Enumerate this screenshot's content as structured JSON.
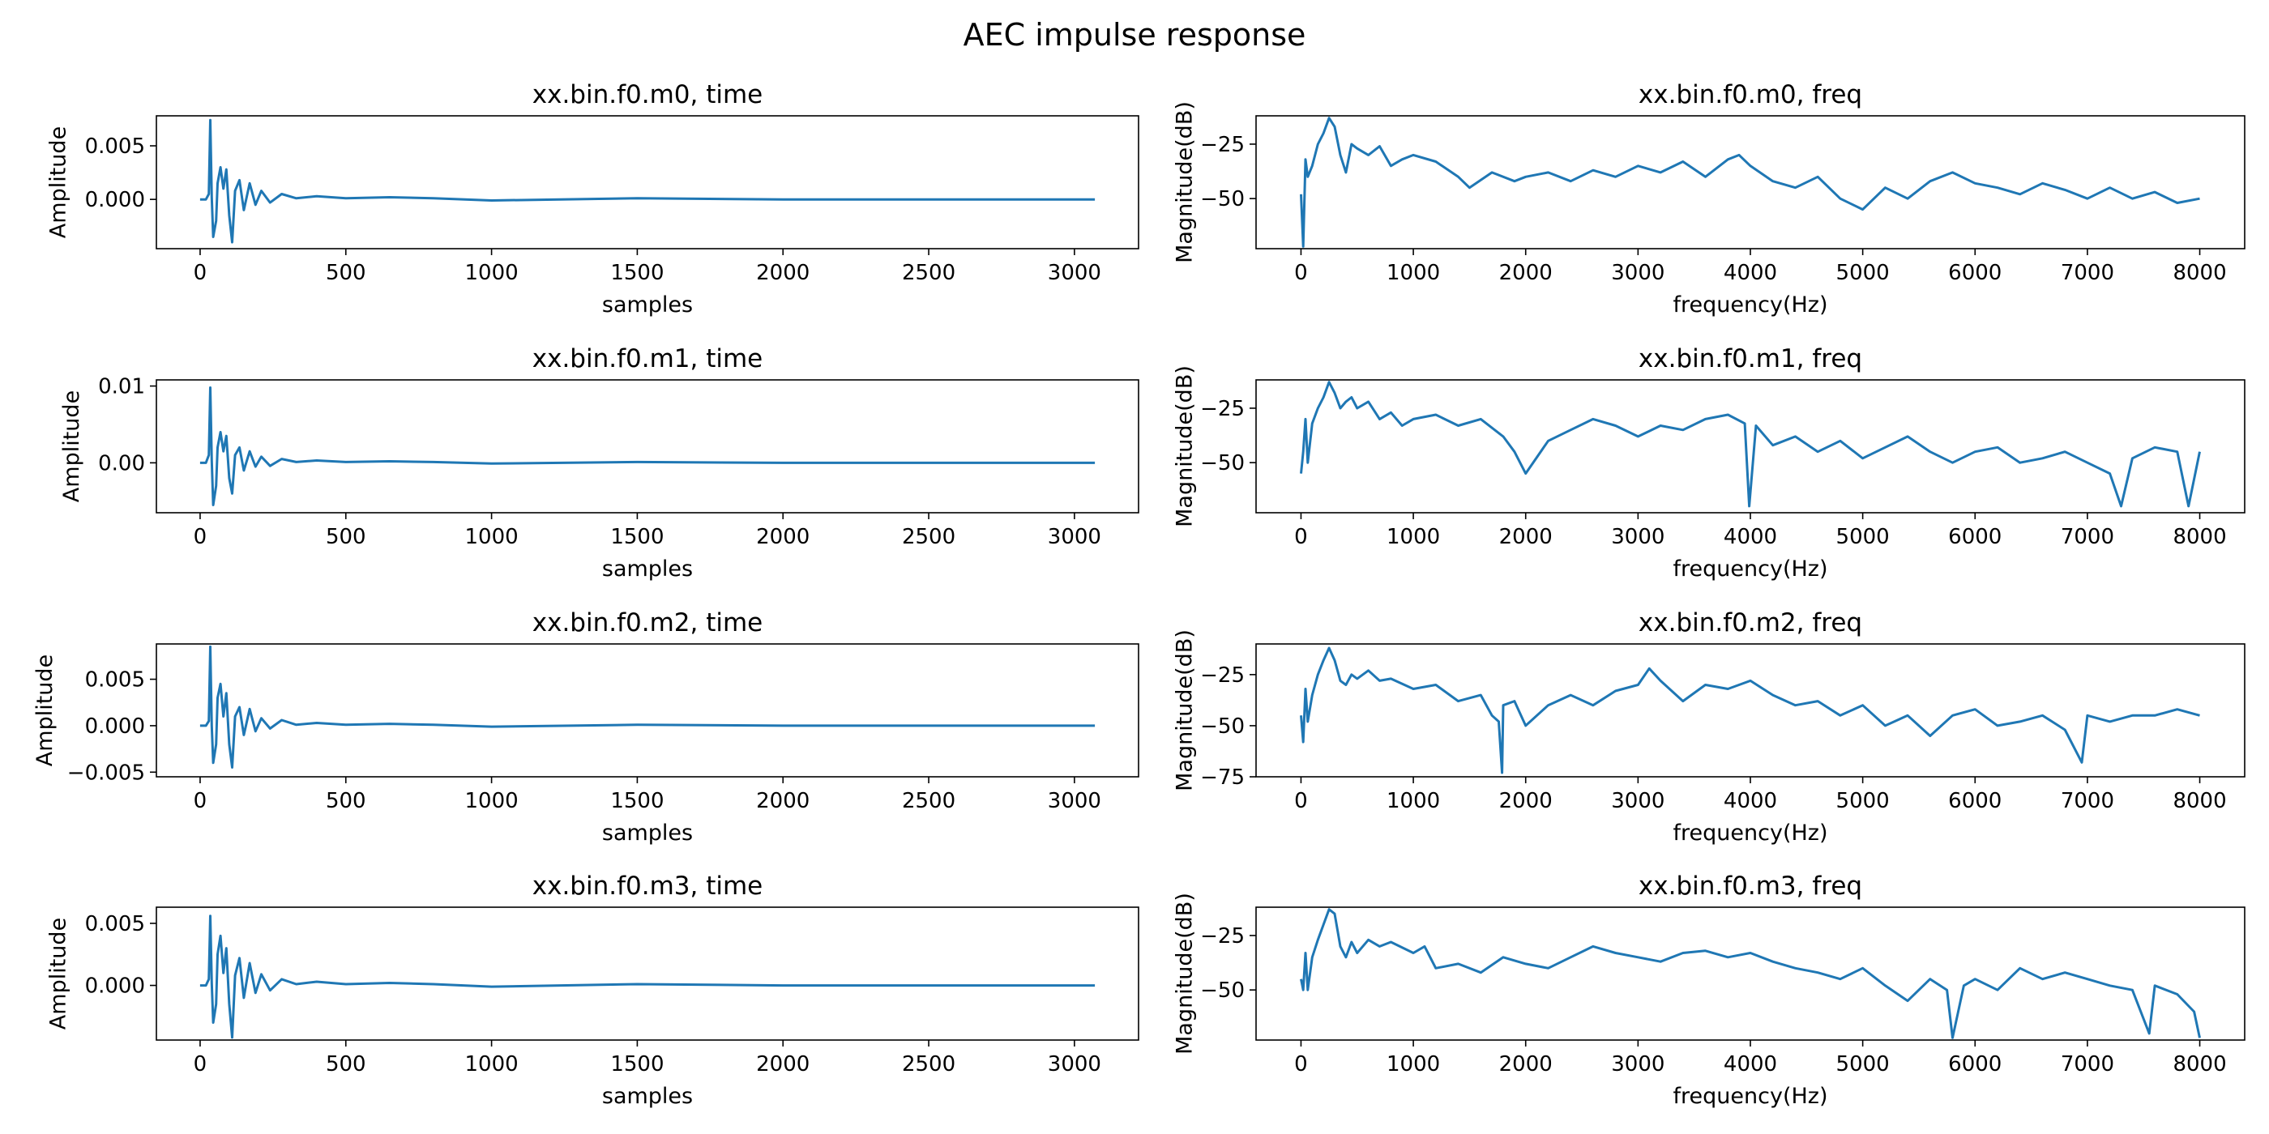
{
  "figure": {
    "title": "AEC impulse response"
  },
  "chart_data": [
    {
      "type": "line",
      "title": "xx.bin.f0.m0, time",
      "xlabel": "samples",
      "ylabel": "Amplitude",
      "xlim": [
        -150,
        3220
      ],
      "ylim": [
        -0.0046,
        0.0078
      ],
      "xticks": [
        0,
        500,
        1000,
        1500,
        2000,
        2500,
        3000
      ],
      "xtick_labels": [
        "0",
        "500",
        "1000",
        "1500",
        "2000",
        "2500",
        "3000"
      ],
      "yticks": [
        0.0,
        0.005
      ],
      "ytick_labels": [
        "0.000",
        "0.005"
      ],
      "series": [
        {
          "name": "m0 time",
          "color": "#1f77b4",
          "x": [
            0,
            20,
            30,
            35,
            40,
            45,
            55,
            60,
            70,
            80,
            90,
            100,
            110,
            120,
            135,
            150,
            170,
            190,
            210,
            240,
            280,
            330,
            400,
            500,
            650,
            800,
            1000,
            1500,
            2000,
            2500,
            3070
          ],
          "values": [
            0.0,
            0.0,
            0.0005,
            0.0074,
            0.0002,
            -0.0035,
            -0.002,
            0.0015,
            0.003,
            0.001,
            0.0028,
            -0.0015,
            -0.004,
            0.0008,
            0.0018,
            -0.001,
            0.0015,
            -0.0005,
            0.0008,
            -0.0003,
            0.0005,
            0.0001,
            0.0003,
            0.0001,
            0.0002,
            0.0001,
            -0.0001,
            0.0001,
            0.0,
            0.0,
            0.0
          ]
        }
      ]
    },
    {
      "type": "line",
      "title": "xx.bin.f0.m0, freq",
      "xlabel": "frequency(Hz)",
      "ylabel": "Magnitude(dB)",
      "xlim": [
        -400,
        8400
      ],
      "ylim": [
        -73,
        -12
      ],
      "xticks": [
        0,
        1000,
        2000,
        3000,
        4000,
        5000,
        6000,
        7000,
        8000
      ],
      "xtick_labels": [
        "0",
        "1000",
        "2000",
        "3000",
        "4000",
        "5000",
        "6000",
        "7000",
        "8000"
      ],
      "yticks": [
        -25,
        -50
      ],
      "ytick_labels": [
        "−25",
        "−50"
      ],
      "series": [
        {
          "name": "m0 freq",
          "color": "#1f77b4",
          "x": [
            0,
            20,
            40,
            60,
            100,
            150,
            200,
            250,
            300,
            350,
            400,
            450,
            500,
            600,
            700,
            800,
            900,
            1000,
            1200,
            1400,
            1500,
            1700,
            1900,
            2000,
            2200,
            2400,
            2600,
            2800,
            3000,
            3200,
            3400,
            3600,
            3800,
            3900,
            4000,
            4200,
            4400,
            4600,
            4800,
            5000,
            5200,
            5400,
            5600,
            5800,
            6000,
            6200,
            6400,
            6600,
            6800,
            7000,
            7200,
            7400,
            7600,
            7800,
            8000
          ],
          "values": [
            -48,
            -72,
            -32,
            -40,
            -35,
            -25,
            -20,
            -13,
            -17,
            -30,
            -38,
            -25,
            -27,
            -30,
            -26,
            -35,
            -32,
            -30,
            -33,
            -40,
            -45,
            -38,
            -42,
            -40,
            -38,
            -42,
            -37,
            -40,
            -35,
            -38,
            -33,
            -40,
            -32,
            -30,
            -35,
            -42,
            -45,
            -40,
            -50,
            -55,
            -45,
            -50,
            -42,
            -38,
            -43,
            -45,
            -48,
            -43,
            -46,
            -50,
            -45,
            -50,
            -47,
            -52,
            -50
          ]
        }
      ]
    },
    {
      "type": "line",
      "title": "xx.bin.f0.m1, time",
      "xlabel": "samples",
      "ylabel": "Amplitude",
      "xlim": [
        -150,
        3220
      ],
      "ylim": [
        -0.0065,
        0.0108
      ],
      "xticks": [
        0,
        500,
        1000,
        1500,
        2000,
        2500,
        3000
      ],
      "xtick_labels": [
        "0",
        "500",
        "1000",
        "1500",
        "2000",
        "2500",
        "3000"
      ],
      "yticks": [
        0.0,
        0.01
      ],
      "ytick_labels": [
        "0.00",
        "0.01"
      ],
      "series": [
        {
          "name": "m1 time",
          "color": "#1f77b4",
          "x": [
            0,
            20,
            30,
            35,
            40,
            45,
            55,
            60,
            70,
            80,
            90,
            100,
            110,
            120,
            135,
            150,
            170,
            190,
            210,
            240,
            280,
            330,
            400,
            500,
            650,
            800,
            1000,
            1500,
            2000,
            2500,
            3070
          ],
          "values": [
            0.0,
            0.0,
            0.001,
            0.0098,
            0.0003,
            -0.0055,
            -0.003,
            0.002,
            0.004,
            0.0015,
            0.0035,
            -0.002,
            -0.004,
            0.001,
            0.002,
            -0.001,
            0.0015,
            -0.0005,
            0.0008,
            -0.0004,
            0.0005,
            0.0001,
            0.0003,
            0.0001,
            0.0002,
            0.0001,
            -0.0001,
            0.0001,
            0.0,
            0.0,
            0.0
          ]
        }
      ]
    },
    {
      "type": "line",
      "title": "xx.bin.f0.m1, freq",
      "xlabel": "frequency(Hz)",
      "ylabel": "Magnitude(dB)",
      "xlim": [
        -400,
        8400
      ],
      "ylim": [
        -73,
        -12
      ],
      "xticks": [
        0,
        1000,
        2000,
        3000,
        4000,
        5000,
        6000,
        7000,
        8000
      ],
      "xtick_labels": [
        "0",
        "1000",
        "2000",
        "3000",
        "4000",
        "5000",
        "6000",
        "7000",
        "8000"
      ],
      "yticks": [
        -25,
        -50
      ],
      "ytick_labels": [
        "−25",
        "−50"
      ],
      "series": [
        {
          "name": "m1 freq",
          "color": "#1f77b4",
          "x": [
            0,
            20,
            40,
            60,
            100,
            150,
            200,
            250,
            300,
            350,
            400,
            450,
            500,
            600,
            700,
            800,
            900,
            1000,
            1200,
            1400,
            1600,
            1800,
            1900,
            2000,
            2200,
            2400,
            2600,
            2800,
            3000,
            3200,
            3400,
            3600,
            3800,
            3950,
            3990,
            4050,
            4200,
            4400,
            4600,
            4800,
            5000,
            5200,
            5400,
            5600,
            5800,
            6000,
            6200,
            6400,
            6600,
            6800,
            7000,
            7200,
            7300,
            7400,
            7600,
            7800,
            7900,
            8000
          ],
          "values": [
            -55,
            -45,
            -30,
            -50,
            -32,
            -25,
            -20,
            -13,
            -18,
            -25,
            -22,
            -20,
            -25,
            -22,
            -30,
            -27,
            -33,
            -30,
            -28,
            -33,
            -30,
            -38,
            -45,
            -55,
            -40,
            -35,
            -30,
            -33,
            -38,
            -33,
            -35,
            -30,
            -28,
            -32,
            -70,
            -33,
            -42,
            -38,
            -45,
            -40,
            -48,
            -43,
            -38,
            -45,
            -50,
            -45,
            -43,
            -50,
            -48,
            -45,
            -50,
            -55,
            -70,
            -48,
            -43,
            -45,
            -70,
            -45
          ]
        }
      ]
    },
    {
      "type": "line",
      "title": "xx.bin.f0.m2, time",
      "xlabel": "samples",
      "ylabel": "Amplitude",
      "xlim": [
        -150,
        3220
      ],
      "ylim": [
        -0.0055,
        0.0088
      ],
      "xticks": [
        0,
        500,
        1000,
        1500,
        2000,
        2500,
        3000
      ],
      "xtick_labels": [
        "0",
        "500",
        "1000",
        "1500",
        "2000",
        "2500",
        "3000"
      ],
      "yticks": [
        -0.005,
        0.0,
        0.005
      ],
      "ytick_labels": [
        "−0.005",
        "0.000",
        "0.005"
      ],
      "series": [
        {
          "name": "m2 time",
          "color": "#1f77b4",
          "x": [
            0,
            20,
            30,
            35,
            40,
            45,
            55,
            60,
            70,
            80,
            90,
            100,
            110,
            120,
            135,
            150,
            170,
            190,
            210,
            240,
            280,
            330,
            400,
            500,
            650,
            800,
            1000,
            1500,
            2000,
            2500,
            3070
          ],
          "values": [
            0.0,
            0.0,
            0.0005,
            0.0085,
            0.0,
            -0.004,
            -0.002,
            0.003,
            0.0045,
            0.001,
            0.0035,
            -0.002,
            -0.0045,
            0.001,
            0.002,
            -0.001,
            0.0018,
            -0.0006,
            0.0008,
            -0.0003,
            0.0006,
            0.0001,
            0.0003,
            0.0001,
            0.0002,
            0.0001,
            -0.0001,
            0.0001,
            0.0,
            0.0,
            0.0
          ]
        }
      ]
    },
    {
      "type": "line",
      "title": "xx.bin.f0.m2, freq",
      "xlabel": "frequency(Hz)",
      "ylabel": "Magnitude(dB)",
      "xlim": [
        -400,
        8400
      ],
      "ylim": [
        -75,
        -10
      ],
      "xticks": [
        0,
        1000,
        2000,
        3000,
        4000,
        5000,
        6000,
        7000,
        8000
      ],
      "xtick_labels": [
        "0",
        "1000",
        "2000",
        "3000",
        "4000",
        "5000",
        "6000",
        "7000",
        "8000"
      ],
      "yticks": [
        -25,
        -50,
        -75
      ],
      "ytick_labels": [
        "−25",
        "−50",
        "−75"
      ],
      "series": [
        {
          "name": "m2 freq",
          "color": "#1f77b4",
          "x": [
            0,
            20,
            40,
            60,
            100,
            150,
            200,
            250,
            300,
            350,
            400,
            450,
            500,
            600,
            700,
            800,
            1000,
            1200,
            1400,
            1600,
            1700,
            1760,
            1790,
            1800,
            1900,
            2000,
            2200,
            2400,
            2600,
            2800,
            3000,
            3100,
            3200,
            3400,
            3600,
            3800,
            4000,
            4200,
            4400,
            4600,
            4800,
            5000,
            5200,
            5400,
            5600,
            5800,
            6000,
            6200,
            6400,
            6600,
            6800,
            6950,
            7000,
            7200,
            7400,
            7600,
            7800,
            8000
          ],
          "values": [
            -45,
            -58,
            -32,
            -48,
            -35,
            -25,
            -18,
            -12,
            -18,
            -28,
            -30,
            -25,
            -27,
            -23,
            -28,
            -27,
            -32,
            -30,
            -38,
            -35,
            -45,
            -48,
            -73,
            -40,
            -38,
            -50,
            -40,
            -35,
            -40,
            -33,
            -30,
            -22,
            -28,
            -38,
            -30,
            -32,
            -28,
            -35,
            -40,
            -38,
            -45,
            -40,
            -50,
            -45,
            -55,
            -45,
            -42,
            -50,
            -48,
            -45,
            -52,
            -68,
            -45,
            -48,
            -45,
            -45,
            -42,
            -45
          ]
        }
      ]
    },
    {
      "type": "line",
      "title": "xx.bin.f0.m3, time",
      "xlabel": "samples",
      "ylabel": "Amplitude",
      "xlim": [
        -150,
        3220
      ],
      "ylim": [
        -0.0044,
        0.0063
      ],
      "xticks": [
        0,
        500,
        1000,
        1500,
        2000,
        2500,
        3000
      ],
      "xtick_labels": [
        "0",
        "500",
        "1000",
        "1500",
        "2000",
        "2500",
        "3000"
      ],
      "yticks": [
        0.0,
        0.005
      ],
      "ytick_labels": [
        "0.000",
        "0.005"
      ],
      "series": [
        {
          "name": "m3 time",
          "color": "#1f77b4",
          "x": [
            0,
            20,
            30,
            35,
            40,
            45,
            55,
            60,
            70,
            80,
            90,
            100,
            110,
            120,
            135,
            150,
            170,
            190,
            210,
            240,
            280,
            330,
            400,
            500,
            650,
            800,
            1000,
            1500,
            2000,
            2500,
            3070
          ],
          "values": [
            0.0,
            0.0,
            0.0005,
            0.0056,
            0.0002,
            -0.003,
            -0.0015,
            0.0025,
            0.004,
            0.001,
            0.003,
            -0.0015,
            -0.0042,
            0.0008,
            0.0022,
            -0.001,
            0.0018,
            -0.0006,
            0.0009,
            -0.0004,
            0.0005,
            0.0001,
            0.0003,
            0.0001,
            0.0002,
            0.0001,
            -0.0001,
            0.0001,
            0.0,
            0.0,
            0.0
          ]
        }
      ]
    },
    {
      "type": "line",
      "title": "xx.bin.f0.m3, freq",
      "xlabel": "frequency(Hz)",
      "ylabel": "Magnitude(dB)",
      "xlim": [
        -400,
        8400
      ],
      "ylim": [
        -73,
        -12
      ],
      "xticks": [
        0,
        1000,
        2000,
        3000,
        4000,
        5000,
        6000,
        7000,
        8000
      ],
      "xtick_labels": [
        "0",
        "1000",
        "2000",
        "3000",
        "4000",
        "5000",
        "6000",
        "7000",
        "8000"
      ],
      "yticks": [
        -25,
        -50
      ],
      "ytick_labels": [
        "−25",
        "−50"
      ],
      "series": [
        {
          "name": "m3 freq",
          "color": "#1f77b4",
          "x": [
            0,
            20,
            40,
            60,
            100,
            150,
            200,
            250,
            300,
            350,
            400,
            450,
            500,
            600,
            700,
            800,
            1000,
            1100,
            1200,
            1400,
            1600,
            1800,
            2000,
            2200,
            2400,
            2600,
            2800,
            3000,
            3200,
            3400,
            3600,
            3800,
            4000,
            4200,
            4400,
            4600,
            4800,
            5000,
            5200,
            5400,
            5600,
            5750,
            5800,
            5900,
            6000,
            6200,
            6400,
            6600,
            6800,
            7000,
            7200,
            7400,
            7550,
            7600,
            7800,
            7950,
            8000
          ],
          "values": [
            -45,
            -50,
            -33,
            -50,
            -35,
            -27,
            -20,
            -13,
            -15,
            -30,
            -35,
            -28,
            -33,
            -27,
            -30,
            -28,
            -33,
            -30,
            -40,
            -38,
            -42,
            -35,
            -38,
            -40,
            -35,
            -30,
            -33,
            -35,
            -37,
            -33,
            -32,
            -35,
            -33,
            -37,
            -40,
            -42,
            -45,
            -40,
            -48,
            -55,
            -45,
            -50,
            -72,
            -48,
            -45,
            -50,
            -40,
            -45,
            -42,
            -45,
            -48,
            -50,
            -70,
            -48,
            -52,
            -60,
            -72
          ]
        }
      ]
    }
  ]
}
